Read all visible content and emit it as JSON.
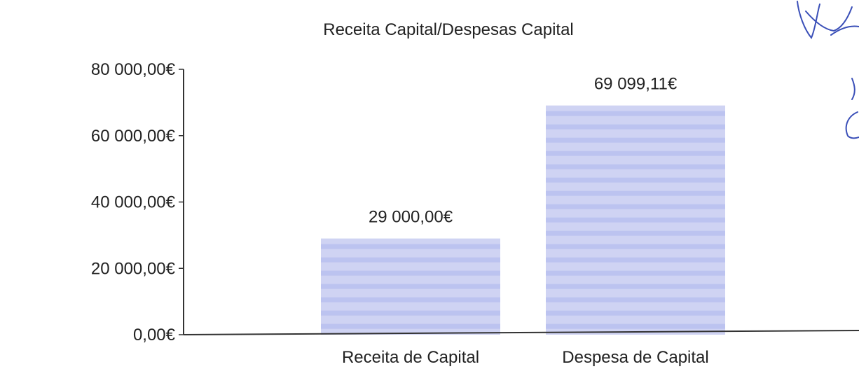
{
  "chart_data": {
    "type": "bar",
    "title": "Receita Capital/Despesas Capital",
    "xlabel": "",
    "ylabel": "",
    "categories": [
      "Receita de Capital",
      "Despesa de Capital"
    ],
    "values": [
      29000.0,
      69099.11
    ],
    "data_labels": [
      "29 000,00€",
      "69 099,11€"
    ],
    "ylim": [
      0,
      80000
    ],
    "yticks": [
      0,
      20000,
      40000,
      60000,
      80000
    ],
    "ytick_labels": [
      "0,00€",
      "20 000,00€",
      "40 000,00€",
      "60 000,00€",
      "80 000,00€"
    ],
    "grid": false,
    "legend": "none",
    "bar_color": "#cfd3f3",
    "bar_stripe_color": "#b9bfee",
    "axis_color": "#333333",
    "text_color": "#222222"
  },
  "annotations": {
    "handwriting_marks": "signature-scribble"
  }
}
